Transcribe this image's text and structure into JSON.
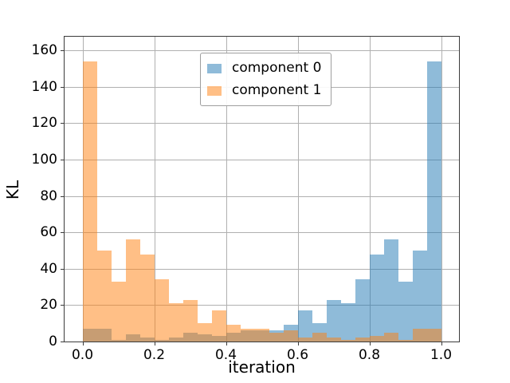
{
  "chart_data": {
    "type": "bar",
    "subtype": "histogram-overlaid",
    "title": "",
    "xlabel": "iteration",
    "ylabel": "KL",
    "bin_start": 0.0,
    "bin_width": 0.04,
    "n_bins": 25,
    "xlim": [
      -0.05,
      1.05
    ],
    "ylim": [
      0,
      167.5
    ],
    "xticks": [
      0.0,
      0.2,
      0.4,
      0.6,
      0.8,
      1.0
    ],
    "xtick_labels": [
      "0.0",
      "0.2",
      "0.4",
      "0.6",
      "0.8",
      "1.0"
    ],
    "yticks": [
      0,
      20,
      40,
      60,
      80,
      100,
      120,
      140,
      160
    ],
    "ytick_labels": [
      "0",
      "20",
      "40",
      "60",
      "80",
      "100",
      "120",
      "140",
      "160"
    ],
    "grid": true,
    "grid_color": "#b0b0b0",
    "spine_color": "#3b3b3b",
    "background_color": "#ffffff",
    "legend_position": "upper center",
    "series": [
      {
        "name": "component 0",
        "color": "#1f77b4",
        "alpha": 0.5,
        "values": [
          7,
          7,
          1,
          4,
          2,
          1,
          2,
          5,
          4,
          3,
          5,
          6,
          6,
          6,
          9,
          17,
          10,
          23,
          21,
          34,
          48,
          56,
          33,
          50,
          154
        ]
      },
      {
        "name": "component 1",
        "color": "#ff7f0e",
        "alpha": 0.5,
        "values": [
          154,
          50,
          33,
          56,
          48,
          34,
          21,
          23,
          10,
          17,
          9,
          7,
          7,
          5,
          6,
          2,
          5,
          2,
          1,
          2,
          3,
          5,
          1,
          7,
          7
        ]
      }
    ]
  }
}
